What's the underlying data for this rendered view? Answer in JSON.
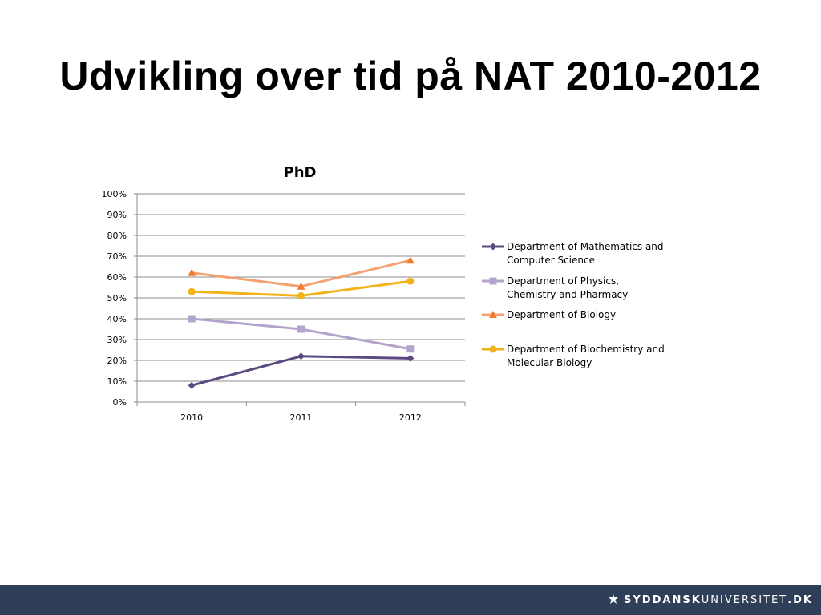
{
  "slide": {
    "title": "Udvikling over tid på NAT 2010-2012"
  },
  "chart_data": {
    "type": "line",
    "title": "PhD",
    "categories": [
      "2010",
      "2011",
      "2012"
    ],
    "ylim": [
      0,
      100
    ],
    "yticks": [
      "0%",
      "10%",
      "20%",
      "30%",
      "40%",
      "50%",
      "60%",
      "70%",
      "80%",
      "90%",
      "100%"
    ],
    "grid": true,
    "legend_position": "right",
    "series": [
      {
        "name": "Department of Mathematics and Computer Science",
        "values": [
          8,
          22,
          21
        ],
        "color": "#5b4a82",
        "marker": "diamond"
      },
      {
        "name": "Department of Physics, Chemistry and Pharmacy",
        "values": [
          40,
          35,
          25.5
        ],
        "color": "#b2a4cc",
        "marker": "square"
      },
      {
        "name": "Department of Biology",
        "values": [
          62,
          55.5,
          68
        ],
        "color": "#f4a070",
        "marker": "triangle"
      },
      {
        "name": "Department of Biochemistry and Molecular Biology",
        "values": [
          53,
          51,
          58
        ],
        "color": "#f2b319",
        "marker": "circle"
      }
    ]
  },
  "footer": {
    "logo_strong": "SYDDANSK",
    "logo_light": "UNIVERSITET",
    "logo_suffix": ".DK",
    "logo_icon": "sdu-swan-icon",
    "background": "#2f3f57"
  }
}
